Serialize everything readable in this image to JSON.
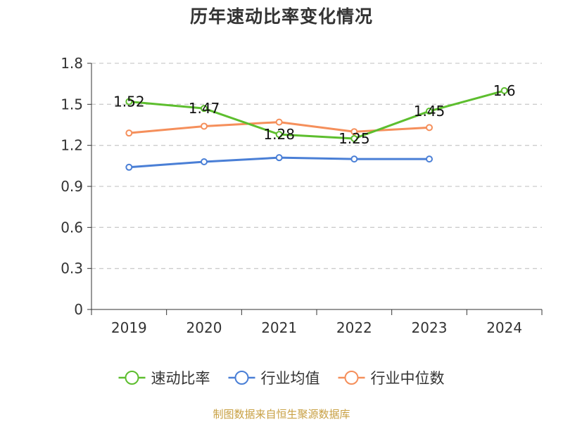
{
  "chart_data": {
    "type": "line",
    "title": "历年速动比率变化情况",
    "categories": [
      "2019",
      "2020",
      "2021",
      "2022",
      "2023",
      "2024"
    ],
    "ylim": [
      0,
      1.8
    ],
    "yticks": [
      0,
      0.3,
      0.6,
      0.9,
      1.2,
      1.5,
      1.8
    ],
    "ytick_labels": [
      "0",
      "0.3",
      "0.6",
      "0.9",
      "1.2",
      "1.5",
      "1.8"
    ],
    "grid": "horizontal dashed",
    "legend_position": "bottom",
    "series": [
      {
        "name": "速动比率",
        "color": "#5dbe2e",
        "values": [
          1.52,
          1.47,
          1.28,
          1.25,
          1.45,
          1.6
        ],
        "labels": [
          "1.52",
          "1.47",
          "1.28",
          "1.25",
          "1.45",
          "1.6"
        ]
      },
      {
        "name": "行业均值",
        "color": "#4a7fd6",
        "values": [
          1.04,
          1.08,
          1.11,
          1.1,
          1.1,
          null
        ]
      },
      {
        "name": "行业中位数",
        "color": "#f58f5b",
        "values": [
          1.29,
          1.34,
          1.37,
          1.3,
          1.33,
          null
        ]
      }
    ]
  },
  "source_note": "制图数据来自恒生聚源数据库"
}
